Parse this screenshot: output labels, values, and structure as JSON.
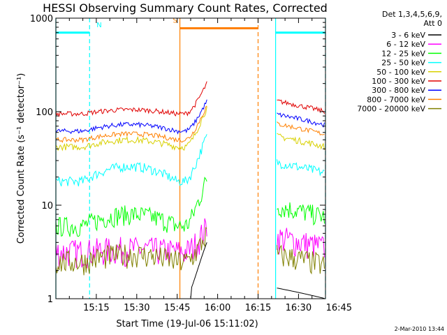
{
  "chart_data": {
    "type": "line",
    "title": "HESSI Observing Summary Count Rates, Corrected",
    "xlabel": "Start Time (19-Jul-06 15:11:02)",
    "ylabel": "Corrected Count Rate (s⁻¹ detector⁻¹)",
    "yscale": "log",
    "ylim": [
      1,
      1000
    ],
    "xlim_minutes": [
      0,
      100
    ],
    "x_tick_labels": [
      "15:15",
      "15:30",
      "15:45",
      "16:00",
      "16:15",
      "16:30",
      "16:45"
    ],
    "x_tick_minutes": [
      15,
      30,
      45,
      60,
      75,
      90,
      105
    ],
    "y_tick_labels": [
      "1",
      "10",
      "100",
      "1000"
    ],
    "y_tick_values": [
      1,
      10,
      100,
      1000
    ],
    "legend_position": "top-right",
    "legend_header": [
      "Det 1,3,4,5,6,9,",
      "Att 0"
    ],
    "series": [
      {
        "name": "3 - 6 keV",
        "color": "#000000"
      },
      {
        "name": "6 - 12 keV",
        "color": "#ff00ff"
      },
      {
        "name": "12 - 25 keV",
        "color": "#00ff00"
      },
      {
        "name": "25 - 50 keV",
        "color": "#00ffff"
      },
      {
        "name": "50 - 100 keV",
        "color": "#d8d000"
      },
      {
        "name": "100 - 300 keV",
        "color": "#e00000"
      },
      {
        "name": "300 - 800 keV",
        "color": "#0000ff"
      },
      {
        "name": "800 - 7000 keV",
        "color": "#ff8000"
      },
      {
        "name": "7000 - 20000 keV",
        "color": "#808000"
      }
    ],
    "segments": [
      {
        "x_start": 0,
        "x_end": 56
      },
      {
        "x_start": 82,
        "x_end": 100
      }
    ],
    "flags": [
      {
        "label": "N",
        "color": "#00ffff",
        "y": 700,
        "intervals": [
          [
            0,
            12.5
          ],
          [
            81.5,
            100
          ]
        ],
        "markers": [
          0,
          12.5,
          81.5,
          100
        ]
      },
      {
        "label": "S",
        "color": "#ff8000",
        "y": 780,
        "intervals": [
          [
            46,
            75
          ]
        ],
        "markers": [
          46,
          75
        ]
      }
    ]
  },
  "footer": {
    "date": "2-Mar-2010 13:44"
  }
}
